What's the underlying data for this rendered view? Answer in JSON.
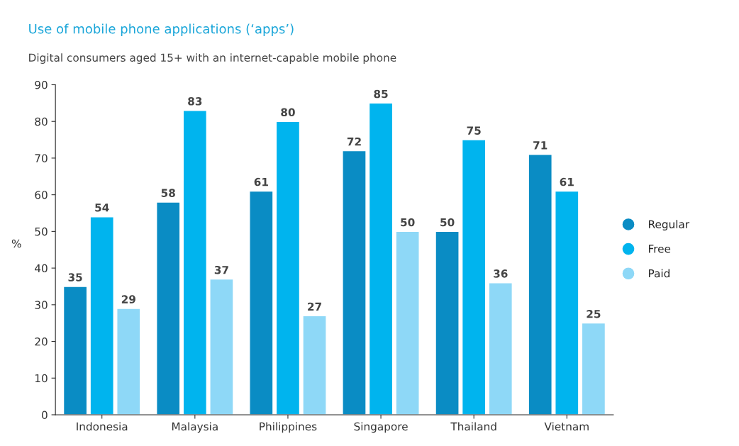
{
  "chart_data": {
    "type": "bar",
    "title": "Use of mobile phone applications (‘apps’)",
    "subtitle": "Digital consumers aged 15+ with an internet-capable mobile phone",
    "ylabel": "%",
    "categories": [
      "Indonesia",
      "Malaysia",
      "Philippines",
      "Singapore",
      "Thailand",
      "Vietnam"
    ],
    "series": [
      {
        "name": "Regular",
        "color": "#0a8cc4",
        "values": [
          35,
          58,
          61,
          72,
          50,
          71
        ]
      },
      {
        "name": "Free",
        "color": "#00b4ee",
        "values": [
          54,
          83,
          80,
          85,
          75,
          61
        ]
      },
      {
        "name": "Paid",
        "color": "#8ed8f7",
        "values": [
          29,
          37,
          27,
          50,
          36,
          25
        ]
      }
    ],
    "ylim": [
      0,
      90
    ],
    "yticks": [
      0,
      10,
      20,
      30,
      40,
      50,
      60,
      70,
      80,
      90
    ],
    "grid": false,
    "legend": "right",
    "marker": "circle",
    "data_labels": true
  }
}
